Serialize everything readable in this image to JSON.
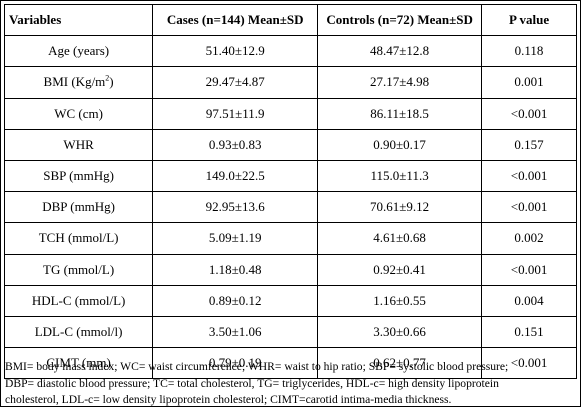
{
  "table": {
    "headers": [
      "Variables",
      "Cases (n=144) Mean±SD",
      "Controls (n=72) Mean±SD",
      "P value"
    ],
    "rows": [
      {
        "variable": "Age (years)",
        "cases": "51.40±12.9",
        "controls": "48.47±12.8",
        "p": "0.118"
      },
      {
        "variable": "BMI (Kg/m",
        "variable_sup": "2",
        "variable_suffix": ")",
        "cases": "29.47±4.87",
        "controls": "27.17±4.98",
        "p": "0.001"
      },
      {
        "variable": "WC (cm)",
        "cases": "97.51±11.9",
        "controls": "86.11±18.5",
        "p": "<0.001"
      },
      {
        "variable": "WHR",
        "cases": "0.93±0.83",
        "controls": "0.90±0.17",
        "p": "0.157"
      },
      {
        "variable": "SBP (mmHg)",
        "cases": "149.0±22.5",
        "controls": "115.0±11.3",
        "p": "<0.001"
      },
      {
        "variable": "DBP (mmHg)",
        "cases": "92.95±13.6",
        "controls": "70.61±9.12",
        "p": "<0.001"
      },
      {
        "variable": "TCH (mmol/L)",
        "cases": "5.09±1.19",
        "controls": "4.61±0.68",
        "p": "0.002"
      },
      {
        "variable": "TG (mmol/L)",
        "cases": "1.18±0.48",
        "controls": "0.92±0.41",
        "p": "<0.001"
      },
      {
        "variable": "HDL-C (mmol/L)",
        "cases": "0.89±0.12",
        "controls": "1.16±0.55",
        "p": "0.004"
      },
      {
        "variable": "LDL-C (mmol/l)",
        "cases": "3.50±1.06",
        "controls": "3.30±0.66",
        "p": "0.151"
      },
      {
        "variable": "CIMT (mm)",
        "cases": "0.79±0.19",
        "controls": "0.62±0.77",
        "p": "<0.001"
      }
    ]
  },
  "footnote": {
    "lines": [
      "BMI= body mass index; WC= waist circumference; WHR= waist to hip ratio; SBP= systolic blood pressure;",
      "DBP= diastolic blood pressure; TC= total cholesterol, TG= triglycerides, HDL-c= high density lipoprotein",
      "cholesterol, LDL-c= low density lipoprotein cholesterol; CIMT=carotid intima-media thickness."
    ]
  }
}
